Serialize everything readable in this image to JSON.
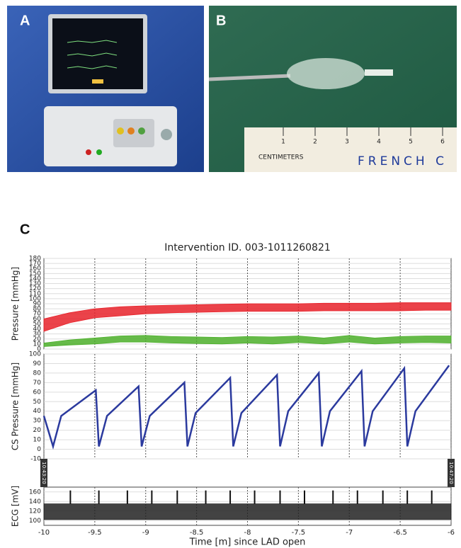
{
  "panels": {
    "A": {
      "label": "A"
    },
    "B": {
      "label": "B",
      "ruler_text": "CENTIMETERS",
      "ruler_brand": "FRENCH C",
      "ruler_numbers": [
        "1",
        "2",
        "3",
        "4",
        "5",
        "6"
      ]
    },
    "C": {
      "label": "C"
    }
  },
  "chart_data": [
    {
      "type": "range",
      "title": "Intervention ID. 003-1011260821",
      "ylabel": "Pressure [mmHg]",
      "x": [
        -10,
        -9.75,
        -9.5,
        -9.25,
        -9,
        -8.75,
        -8.5,
        -8.25,
        -8,
        -7.75,
        -7.5,
        -7.25,
        -7,
        -6.75,
        -6.5,
        -6.25,
        -6
      ],
      "series": [
        {
          "color": "#e8222a",
          "high": [
            60,
            72,
            80,
            84,
            86,
            87,
            88,
            89,
            90,
            90,
            90,
            91,
            91,
            91,
            92,
            92,
            92
          ],
          "low": [
            35,
            52,
            62,
            66,
            70,
            72,
            73,
            74,
            75,
            75,
            75,
            76,
            76,
            76,
            76,
            77,
            77
          ]
        },
        {
          "color": "#4caf2a",
          "high": [
            12,
            18,
            22,
            26,
            27,
            25,
            24,
            23,
            25,
            24,
            26,
            22,
            27,
            22,
            25,
            26,
            26
          ],
          "low": [
            5,
            8,
            10,
            14,
            14,
            12,
            11,
            10,
            12,
            10,
            13,
            10,
            14,
            10,
            12,
            13,
            12
          ]
        }
      ],
      "xlim": [
        -10,
        -6
      ],
      "xticks": [
        -10,
        -9.5,
        -9,
        -8.5,
        -8,
        -7.5,
        -7,
        -6.5,
        -6
      ],
      "ylim": [
        0,
        180
      ],
      "yticks": [
        0,
        10,
        20,
        30,
        40,
        50,
        60,
        70,
        80,
        90,
        100,
        110,
        120,
        130,
        140,
        150,
        160,
        170,
        180
      ],
      "grid": true
    },
    {
      "type": "line",
      "ylabel": "CS Pressure [mmHg]",
      "x": [
        -10,
        -9.91,
        -9.83,
        -9.49,
        -9.46,
        -9.38,
        -9.07,
        -9.04,
        -8.96,
        -8.62,
        -8.59,
        -8.51,
        -8.17,
        -8.14,
        -8.06,
        -7.71,
        -7.68,
        -7.6,
        -7.3,
        -7.27,
        -7.19,
        -6.88,
        -6.85,
        -6.77,
        -6.46,
        -6.43,
        -6.35,
        -6.02
      ],
      "series": [
        {
          "color": "#2b3a9e",
          "values": [
            35,
            3,
            35,
            62,
            3,
            35,
            66,
            3,
            35,
            70,
            3,
            38,
            75,
            3,
            38,
            78,
            3,
            40,
            80,
            3,
            40,
            82,
            3,
            40,
            85,
            3,
            40,
            88
          ]
        }
      ],
      "annotations": [
        {
          "x": -10,
          "text": "10:43:20"
        },
        {
          "x": -6,
          "text": "10:47:20"
        }
      ],
      "xlim": [
        -10,
        -6
      ],
      "xticks": [
        -10,
        -9.5,
        -9,
        -8.5,
        -8,
        -7.5,
        -7,
        -6.5,
        -6
      ],
      "ylim": [
        -10,
        100
      ],
      "yticks": [
        -10,
        0,
        10,
        20,
        30,
        40,
        50,
        60,
        70,
        80,
        90,
        100
      ],
      "grid": true
    },
    {
      "type": "range",
      "ylabel": "ECG [mV]",
      "xlabel": "Time [m] since LAD open",
      "x": [
        -10,
        -6
      ],
      "series": [
        {
          "color": "#222222",
          "high": [
            135,
            135
          ],
          "low": [
            102,
            102
          ]
        }
      ],
      "spikes": {
        "color": "#111111",
        "x": [
          -9.74,
          -9.46,
          -9.18,
          -8.94,
          -8.69,
          -8.41,
          -8.17,
          -7.93,
          -7.68,
          -7.44,
          -7.16,
          -6.92,
          -6.67,
          -6.43,
          -6.19
        ],
        "values": [
          163,
          163,
          163,
          163,
          163,
          163,
          163,
          163,
          163,
          163,
          163,
          163,
          163,
          163,
          163
        ]
      },
      "xlim": [
        -10,
        -6
      ],
      "xticks": [
        -10,
        -9.5,
        -9,
        -8.5,
        -8,
        -7.5,
        -7,
        -6.5,
        -6
      ],
      "ylim": [
        90,
        170
      ],
      "yticks": [
        100,
        120,
        140,
        160
      ],
      "grid": true
    }
  ]
}
